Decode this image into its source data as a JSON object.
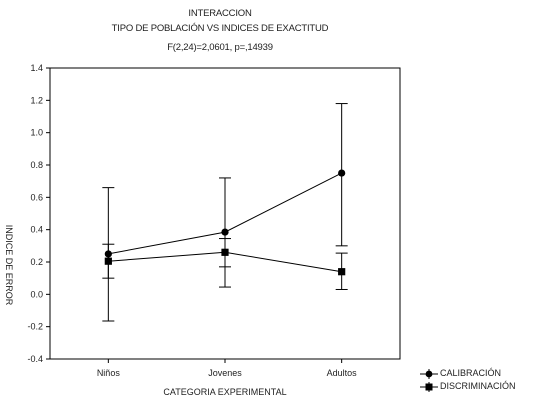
{
  "chart_data": {
    "type": "line",
    "title": "INTERACCION",
    "subtitle": "TIPO DE POBLACIÓN VS INDICES DE EXACTITUD",
    "stat_text": "F(2,24)=2,0601, p=,14939",
    "xlabel": "CATEGORIA EXPERIMENTAL",
    "ylabel": "INDICE DE ERROR",
    "categories": [
      "Niños",
      "Jovenes",
      "Adultos"
    ],
    "ylim": [
      -0.4,
      1.4
    ],
    "yticks": [
      "-0.4",
      "-0.2",
      "0.0",
      "0.2",
      "0.4",
      "0.6",
      "0.8",
      "1.0",
      "1.2",
      "1.4"
    ],
    "grid": false,
    "legend_position": "bottom-right",
    "series": [
      {
        "name": "CALIBRACIÓN",
        "marker": "circle",
        "values": [
          0.25,
          0.385,
          0.75
        ],
        "ci_low": [
          -0.165,
          0.045,
          0.3
        ],
        "ci_high": [
          0.66,
          0.72,
          1.18
        ]
      },
      {
        "name": "DISCRIMINACIÓN",
        "marker": "square",
        "values": [
          0.205,
          0.26,
          0.14
        ],
        "ci_low": [
          0.1,
          0.17,
          0.03
        ],
        "ci_high": [
          0.31,
          0.345,
          0.255
        ]
      }
    ]
  }
}
